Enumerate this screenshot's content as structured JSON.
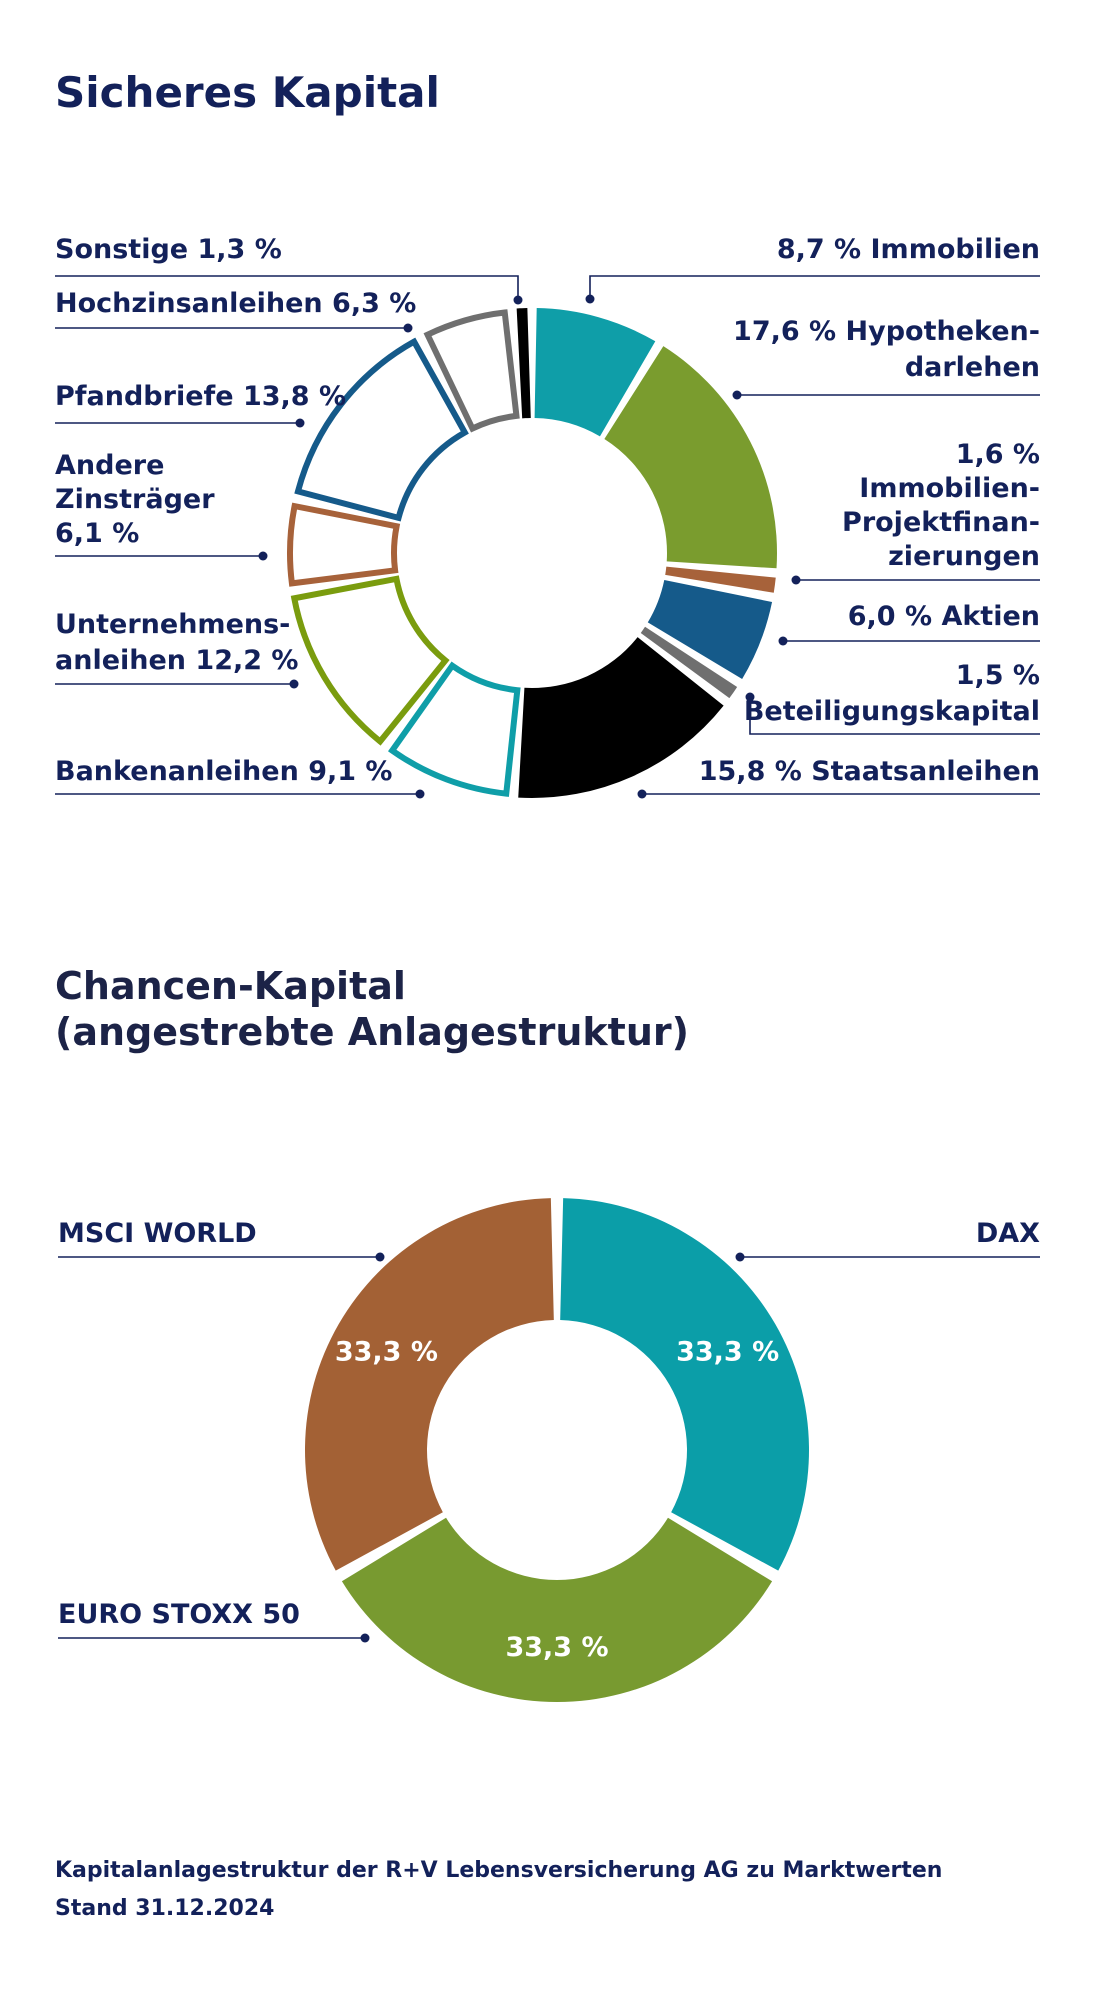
{
  "chart_data": [
    {
      "type": "pie",
      "title": "Sicheres Kapital",
      "unit": "%",
      "slices": [
        {
          "label": "Immobilien",
          "display": "8,7 % Immobilien",
          "value": 8.7,
          "color": "#0f9ea8",
          "fill": "solid"
        },
        {
          "label": "Hypothekendarlehen",
          "display": "17,6 % Hypotheken-|darlehen",
          "value": 17.6,
          "color": "#7a9c2e",
          "fill": "solid"
        },
        {
          "label": "Immobilien-Projektfinanzierungen",
          "display": "1,6 %|Immobilien-|Projektfinan-|zierungen",
          "value": 1.6,
          "color": "#a7623a",
          "fill": "solid"
        },
        {
          "label": "Aktien",
          "display": "6,0 % Aktien",
          "value": 6.0,
          "color": "#155a8a",
          "fill": "solid"
        },
        {
          "label": "Beteiligungskapital",
          "display": "1,5 %|Beteiligungskapital",
          "value": 1.5,
          "color": "#6f6f6f",
          "fill": "solid"
        },
        {
          "label": "Staatsanleihen",
          "display": "15,8 % Staatsanleihen",
          "value": 15.8,
          "color": "#000000",
          "fill": "solid"
        },
        {
          "label": "Bankenanleihen",
          "display": "Bankenanleihen 9,1 %",
          "value": 9.1,
          "color": "#0f9ea8",
          "fill": "outline"
        },
        {
          "label": "Unternehmensanleihen",
          "display": "Unternehmens-|anleihen 12,2 %",
          "value": 12.2,
          "color": "#7a9c0e",
          "fill": "outline"
        },
        {
          "label": "Andere Zinsträger",
          "display": "Andere|Zinsträger|6,1 %",
          "value": 6.1,
          "color": "#a7623a",
          "fill": "outline"
        },
        {
          "label": "Pfandbriefe",
          "display": "Pfandbriefe 13,8 %",
          "value": 13.8,
          "color": "#155a8a",
          "fill": "outline"
        },
        {
          "label": "Hochzinsanleihen",
          "display": "Hochzinsanleihen 6,3 %",
          "value": 6.3,
          "color": "#6f6f6f",
          "fill": "outline"
        },
        {
          "label": "Sonstige",
          "display": "Sonstige 1,3 %",
          "value": 1.3,
          "color": "#000000",
          "fill": "outline"
        }
      ]
    },
    {
      "type": "pie",
      "title": "Chancen-Kapital (angestrebte Anlagestruktur)",
      "unit": "%",
      "slices": [
        {
          "label": "DAX",
          "value": 33.3,
          "value_label": "33,3 %",
          "color": "#0b9ea8"
        },
        {
          "label": "EURO STOXX 50",
          "value": 33.3,
          "value_label": "33,3 %",
          "color": "#789a30"
        },
        {
          "label": "MSCI WORLD",
          "value": 33.3,
          "value_label": "33,3 %",
          "color": "#a36135"
        }
      ]
    }
  ],
  "page": {
    "title1": "Sicheres Kapital",
    "title2_line1": "Chancen-Kapital",
    "title2_line2": "(angestrebte Anlagestruktur)",
    "footer_line1": "Kapitalanlagestruktur der R+V Lebensversicherung AG zu Marktwerten",
    "footer_line2": "Stand 31.12.2024"
  },
  "colors": {
    "text": "#13215a",
    "leader": "#13215a"
  }
}
